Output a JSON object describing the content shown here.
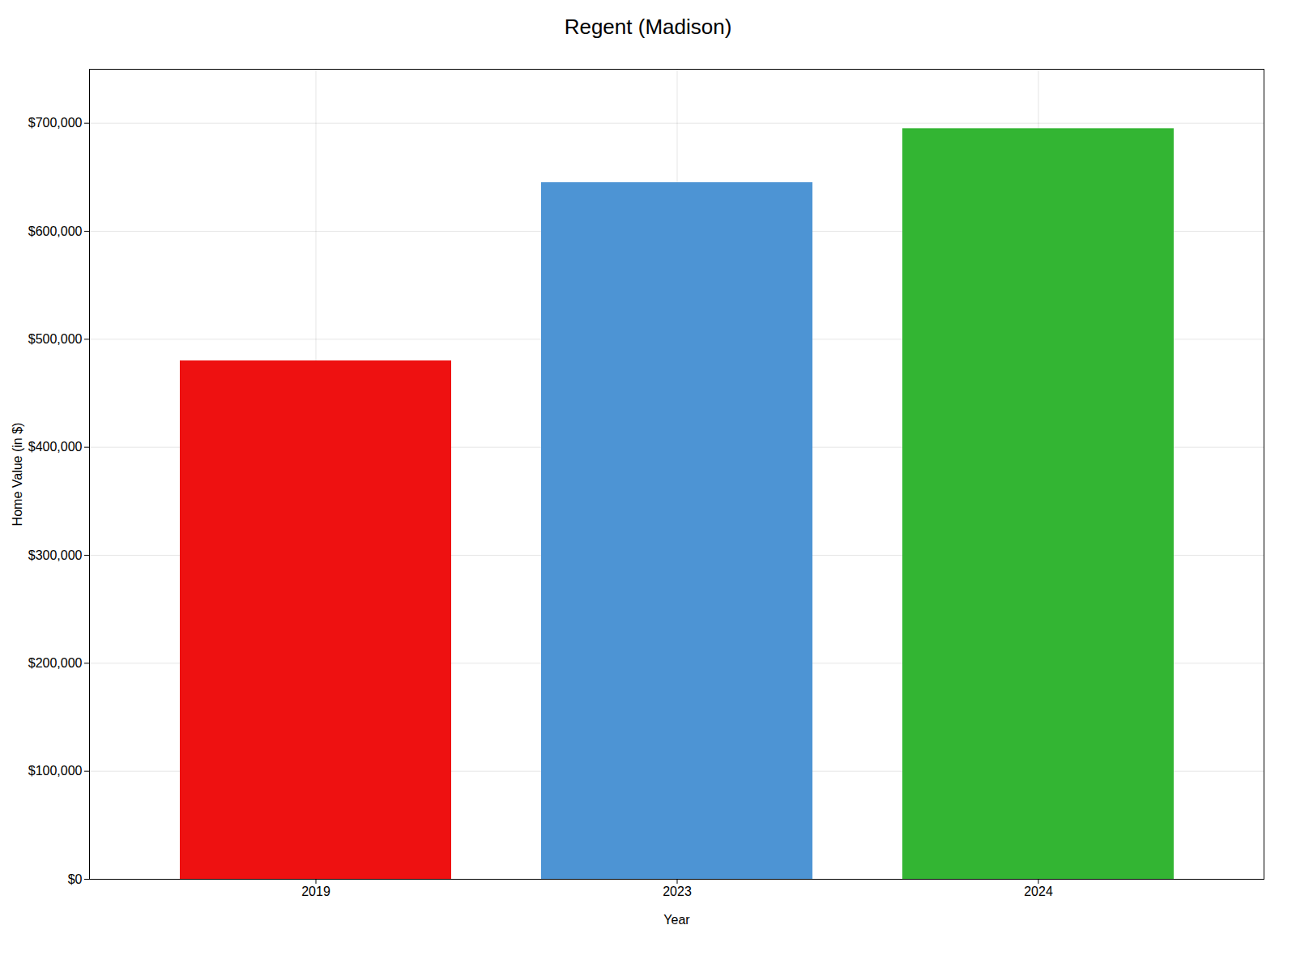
{
  "chart_data": {
    "type": "bar",
    "title": "Regent (Madison)",
    "categories": [
      "2019",
      "2023",
      "2024"
    ],
    "values": [
      480000,
      645000,
      695000
    ],
    "colors": [
      "#ee1111",
      "#4d94d4",
      "#33b533"
    ],
    "xlabel": "Year",
    "ylabel": "Home Value (in $)",
    "ylim": [
      0,
      750000
    ],
    "yticks": [
      {
        "value": 0,
        "label": "$0"
      },
      {
        "value": 100000,
        "label": "$100,000"
      },
      {
        "value": 200000,
        "label": "$200,000"
      },
      {
        "value": 300000,
        "label": "$300,000"
      },
      {
        "value": 400000,
        "label": "$400,000"
      },
      {
        "value": 500000,
        "label": "$500,000"
      },
      {
        "value": 600000,
        "label": "$600,000"
      },
      {
        "value": 700000,
        "label": "$700,000"
      }
    ],
    "grid": true
  }
}
